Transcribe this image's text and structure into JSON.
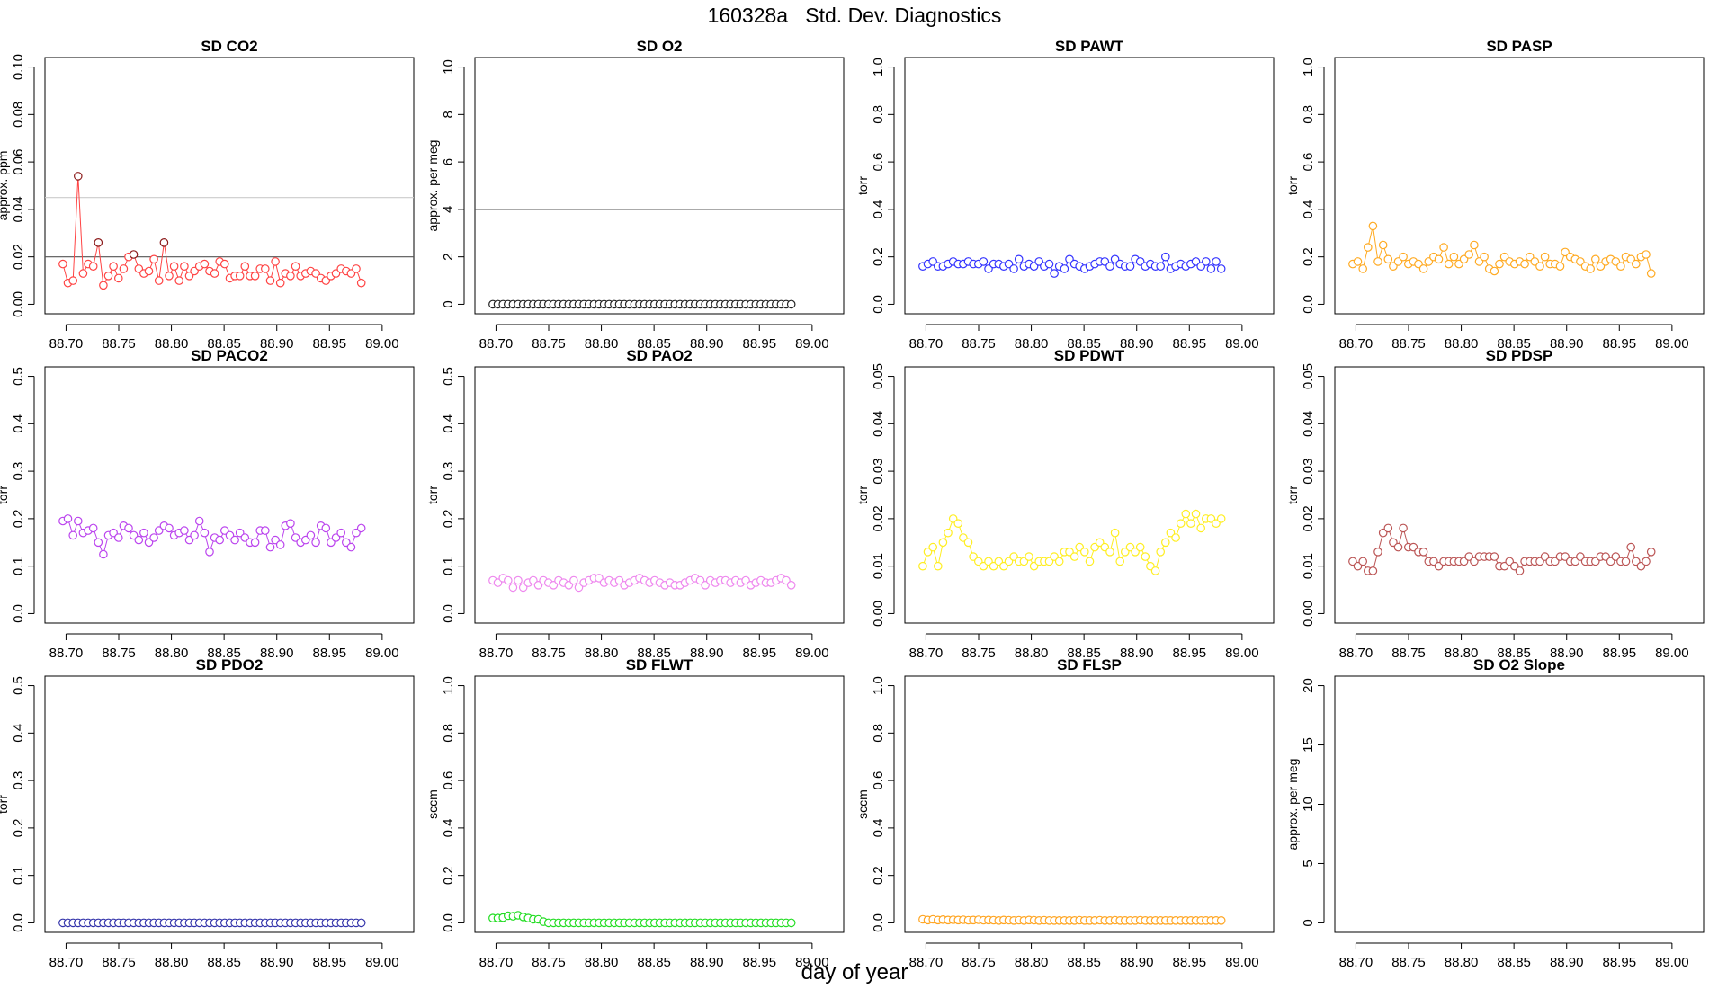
{
  "page_title": "160328a   Std. Dev. Diagnostics",
  "x_axis_label": "day of year",
  "chart_data": [
    {
      "type": "scatter",
      "title": "SD CO2",
      "ylabel": "approx. ppm",
      "xlim": [
        88.68,
        89.03
      ],
      "ylim": [
        0,
        0.1
      ],
      "yticks": [
        0,
        0.02,
        0.04,
        0.06,
        0.08,
        0.1
      ],
      "yticklabels": [
        "0.00",
        "0.02",
        "0.04",
        "0.06",
        "0.08",
        "0.10"
      ],
      "xticks": [
        88.7,
        88.75,
        88.8,
        88.85,
        88.9,
        88.95,
        89.0
      ],
      "xticklabels": [
        "88.70",
        "88.75",
        "88.80",
        "88.85",
        "88.90",
        "88.95",
        "89.00"
      ],
      "color": "#ff4444",
      "hlines": [
        {
          "y": 0.02,
          "color": "#555555"
        },
        {
          "y": 0.045,
          "color": "#cccccc"
        }
      ],
      "highlight_above": 0.02,
      "highlight_color": "#8b1a1a",
      "x0": 88.697,
      "dx": 0.0048,
      "y": [
        0.017,
        0.009,
        0.01,
        0.054,
        0.013,
        0.017,
        0.016,
        0.026,
        0.008,
        0.012,
        0.016,
        0.011,
        0.015,
        0.02,
        0.021,
        0.015,
        0.013,
        0.014,
        0.019,
        0.01,
        0.026,
        0.012,
        0.016,
        0.01,
        0.016,
        0.012,
        0.014,
        0.016,
        0.017,
        0.014,
        0.013,
        0.018,
        0.017,
        0.011,
        0.012,
        0.012,
        0.016,
        0.012,
        0.012,
        0.015,
        0.015,
        0.01,
        0.018,
        0.009,
        0.013,
        0.012,
        0.016,
        0.012,
        0.013,
        0.014,
        0.013,
        0.011,
        0.01,
        0.012,
        0.013,
        0.015,
        0.014,
        0.013,
        0.015,
        0.009
      ]
    },
    {
      "type": "scatter",
      "title": "SD O2",
      "ylabel": "approx. per meg",
      "xlim": [
        88.68,
        89.03
      ],
      "ylim": [
        0,
        10
      ],
      "yticks": [
        0,
        2,
        4,
        6,
        8,
        10
      ],
      "yticklabels": [
        "0",
        "2",
        "4",
        "6",
        "8",
        "10"
      ],
      "xticks": [
        88.7,
        88.75,
        88.8,
        88.85,
        88.9,
        88.95,
        89.0
      ],
      "xticklabels": [
        "88.70",
        "88.75",
        "88.80",
        "88.85",
        "88.90",
        "88.95",
        "89.00"
      ],
      "color": "#222222",
      "hlines": [
        {
          "y": 4,
          "color": "#555555"
        }
      ],
      "x0": 88.697,
      "dx": 0.0048,
      "y": [
        0,
        0,
        0,
        0,
        0,
        0,
        0,
        0,
        0,
        0,
        0,
        0,
        0,
        0,
        0,
        0,
        0,
        0,
        0,
        0,
        0,
        0,
        0,
        0,
        0,
        0,
        0,
        0,
        0,
        0,
        0,
        0,
        0,
        0,
        0,
        0,
        0,
        0,
        0,
        0,
        0,
        0,
        0,
        0,
        0,
        0,
        0,
        0,
        0,
        0,
        0,
        0,
        0,
        0,
        0,
        0,
        0,
        0,
        0,
        0
      ]
    },
    {
      "type": "scatter",
      "title": "SD PAWT",
      "ylabel": "torr",
      "xlim": [
        88.68,
        89.03
      ],
      "ylim": [
        0,
        1
      ],
      "yticks": [
        0,
        0.2,
        0.4,
        0.6,
        0.8,
        1
      ],
      "yticklabels": [
        "0.0",
        "0.2",
        "0.4",
        "0.6",
        "0.8",
        "1.0"
      ],
      "xticks": [
        88.7,
        88.75,
        88.8,
        88.85,
        88.9,
        88.95,
        89.0
      ],
      "xticklabels": [
        "88.70",
        "88.75",
        "88.80",
        "88.85",
        "88.90",
        "88.95",
        "89.00"
      ],
      "color": "#3333ff",
      "hlines": [],
      "x0": 88.697,
      "dx": 0.0048,
      "y": [
        0.16,
        0.17,
        0.18,
        0.16,
        0.16,
        0.17,
        0.18,
        0.17,
        0.17,
        0.18,
        0.17,
        0.17,
        0.18,
        0.15,
        0.17,
        0.17,
        0.16,
        0.17,
        0.15,
        0.19,
        0.16,
        0.17,
        0.16,
        0.18,
        0.16,
        0.17,
        0.13,
        0.16,
        0.15,
        0.19,
        0.17,
        0.16,
        0.15,
        0.16,
        0.17,
        0.18,
        0.18,
        0.16,
        0.19,
        0.17,
        0.16,
        0.16,
        0.19,
        0.18,
        0.16,
        0.17,
        0.16,
        0.16,
        0.2,
        0.15,
        0.16,
        0.17,
        0.16,
        0.17,
        0.18,
        0.16,
        0.18,
        0.15,
        0.18,
        0.15
      ]
    },
    {
      "type": "scatter",
      "title": "SD PASP",
      "ylabel": "torr",
      "xlim": [
        88.68,
        89.03
      ],
      "ylim": [
        0,
        1
      ],
      "yticks": [
        0,
        0.2,
        0.4,
        0.6,
        0.8,
        1
      ],
      "yticklabels": [
        "0.0",
        "0.2",
        "0.4",
        "0.6",
        "0.8",
        "1.0"
      ],
      "xticks": [
        88.7,
        88.75,
        88.8,
        88.85,
        88.9,
        88.95,
        89.0
      ],
      "xticklabels": [
        "88.70",
        "88.75",
        "88.80",
        "88.85",
        "88.90",
        "88.95",
        "89.00"
      ],
      "color": "#ffaa22",
      "hlines": [],
      "x0": 88.697,
      "dx": 0.0048,
      "y": [
        0.17,
        0.18,
        0.15,
        0.24,
        0.33,
        0.18,
        0.25,
        0.19,
        0.16,
        0.18,
        0.2,
        0.17,
        0.18,
        0.17,
        0.15,
        0.18,
        0.2,
        0.19,
        0.24,
        0.17,
        0.2,
        0.17,
        0.19,
        0.21,
        0.25,
        0.18,
        0.2,
        0.15,
        0.14,
        0.17,
        0.2,
        0.18,
        0.17,
        0.18,
        0.17,
        0.2,
        0.18,
        0.16,
        0.2,
        0.17,
        0.17,
        0.16,
        0.22,
        0.2,
        0.19,
        0.18,
        0.16,
        0.15,
        0.19,
        0.16,
        0.18,
        0.19,
        0.18,
        0.16,
        0.2,
        0.19,
        0.17,
        0.2,
        0.21,
        0.13
      ]
    },
    {
      "type": "scatter",
      "title": "SD PACO2",
      "ylabel": "torr",
      "xlim": [
        88.68,
        89.03
      ],
      "ylim": [
        0,
        0.5
      ],
      "yticks": [
        0,
        0.1,
        0.2,
        0.3,
        0.4,
        0.5
      ],
      "yticklabels": [
        "0.0",
        "0.1",
        "0.2",
        "0.3",
        "0.4",
        "0.5"
      ],
      "xticks": [
        88.7,
        88.75,
        88.8,
        88.85,
        88.9,
        88.95,
        89.0
      ],
      "xticklabels": [
        "88.70",
        "88.75",
        "88.80",
        "88.85",
        "88.90",
        "88.95",
        "89.00"
      ],
      "color": "#bb44ee",
      "hlines": [],
      "x0": 88.697,
      "dx": 0.0048,
      "y": [
        0.195,
        0.2,
        0.165,
        0.195,
        0.17,
        0.175,
        0.18,
        0.15,
        0.125,
        0.165,
        0.17,
        0.16,
        0.185,
        0.18,
        0.165,
        0.155,
        0.17,
        0.15,
        0.16,
        0.175,
        0.185,
        0.18,
        0.165,
        0.17,
        0.175,
        0.155,
        0.165,
        0.195,
        0.17,
        0.13,
        0.16,
        0.155,
        0.175,
        0.165,
        0.155,
        0.17,
        0.16,
        0.15,
        0.15,
        0.175,
        0.175,
        0.14,
        0.155,
        0.145,
        0.185,
        0.19,
        0.16,
        0.15,
        0.155,
        0.165,
        0.15,
        0.185,
        0.18,
        0.15,
        0.16,
        0.17,
        0.15,
        0.14,
        0.17,
        0.18
      ]
    },
    {
      "type": "scatter",
      "title": "SD PAO2",
      "ylabel": "torr",
      "xlim": [
        88.68,
        89.03
      ],
      "ylim": [
        0,
        0.5
      ],
      "yticks": [
        0,
        0.1,
        0.2,
        0.3,
        0.4,
        0.5
      ],
      "yticklabels": [
        "0.0",
        "0.1",
        "0.2",
        "0.3",
        "0.4",
        "0.5"
      ],
      "xticks": [
        88.7,
        88.75,
        88.8,
        88.85,
        88.9,
        88.95,
        89.0
      ],
      "xticklabels": [
        "88.70",
        "88.75",
        "88.80",
        "88.85",
        "88.90",
        "88.95",
        "89.00"
      ],
      "color": "#ee88ee",
      "hlines": [],
      "x0": 88.697,
      "dx": 0.0048,
      "y": [
        0.07,
        0.065,
        0.075,
        0.07,
        0.055,
        0.07,
        0.055,
        0.065,
        0.07,
        0.06,
        0.07,
        0.065,
        0.06,
        0.07,
        0.065,
        0.06,
        0.07,
        0.055,
        0.065,
        0.07,
        0.075,
        0.075,
        0.065,
        0.07,
        0.065,
        0.07,
        0.06,
        0.065,
        0.07,
        0.075,
        0.07,
        0.065,
        0.07,
        0.065,
        0.06,
        0.065,
        0.06,
        0.06,
        0.065,
        0.07,
        0.075,
        0.07,
        0.06,
        0.07,
        0.065,
        0.07,
        0.07,
        0.065,
        0.07,
        0.065,
        0.07,
        0.06,
        0.065,
        0.07,
        0.065,
        0.065,
        0.07,
        0.075,
        0.07,
        0.06
      ]
    },
    {
      "type": "scatter",
      "title": "SD PDWT",
      "ylabel": "torr",
      "xlim": [
        88.68,
        89.03
      ],
      "ylim": [
        0,
        0.05
      ],
      "yticks": [
        0,
        0.01,
        0.02,
        0.03,
        0.04,
        0.05
      ],
      "yticklabels": [
        "0.00",
        "0.01",
        "0.02",
        "0.03",
        "0.04",
        "0.05"
      ],
      "xticks": [
        88.7,
        88.75,
        88.8,
        88.85,
        88.9,
        88.95,
        89.0
      ],
      "xticklabels": [
        "88.70",
        "88.75",
        "88.80",
        "88.85",
        "88.90",
        "88.95",
        "89.00"
      ],
      "color": "#ffee22",
      "hlines": [],
      "x0": 88.697,
      "dx": 0.0048,
      "y": [
        0.01,
        0.013,
        0.014,
        0.01,
        0.015,
        0.017,
        0.02,
        0.019,
        0.016,
        0.015,
        0.012,
        0.011,
        0.01,
        0.011,
        0.01,
        0.011,
        0.01,
        0.011,
        0.012,
        0.011,
        0.011,
        0.012,
        0.01,
        0.011,
        0.011,
        0.011,
        0.012,
        0.011,
        0.013,
        0.013,
        0.012,
        0.014,
        0.013,
        0.011,
        0.014,
        0.015,
        0.014,
        0.013,
        0.017,
        0.011,
        0.013,
        0.014,
        0.013,
        0.014,
        0.012,
        0.01,
        0.009,
        0.013,
        0.015,
        0.017,
        0.016,
        0.019,
        0.021,
        0.019,
        0.021,
        0.018,
        0.02,
        0.02,
        0.019,
        0.02
      ]
    },
    {
      "type": "scatter",
      "title": "SD PDSP",
      "ylabel": "torr",
      "xlim": [
        88.68,
        89.03
      ],
      "ylim": [
        0,
        0.05
      ],
      "yticks": [
        0,
        0.01,
        0.02,
        0.03,
        0.04,
        0.05
      ],
      "yticklabels": [
        "0.00",
        "0.01",
        "0.02",
        "0.03",
        "0.04",
        "0.05"
      ],
      "xticks": [
        88.7,
        88.75,
        88.8,
        88.85,
        88.9,
        88.95,
        89.0
      ],
      "xticklabels": [
        "88.70",
        "88.75",
        "88.80",
        "88.85",
        "88.90",
        "88.95",
        "89.00"
      ],
      "color": "#bb5555",
      "hlines": [],
      "x0": 88.697,
      "dx": 0.0048,
      "y": [
        0.011,
        0.01,
        0.011,
        0.009,
        0.009,
        0.013,
        0.017,
        0.018,
        0.015,
        0.014,
        0.018,
        0.014,
        0.014,
        0.013,
        0.013,
        0.011,
        0.011,
        0.01,
        0.011,
        0.011,
        0.011,
        0.011,
        0.011,
        0.012,
        0.011,
        0.012,
        0.012,
        0.012,
        0.012,
        0.01,
        0.01,
        0.011,
        0.01,
        0.009,
        0.011,
        0.011,
        0.011,
        0.011,
        0.012,
        0.011,
        0.011,
        0.012,
        0.012,
        0.011,
        0.011,
        0.012,
        0.011,
        0.011,
        0.011,
        0.012,
        0.012,
        0.011,
        0.012,
        0.011,
        0.011,
        0.014,
        0.011,
        0.01,
        0.011,
        0.013
      ]
    },
    {
      "type": "scatter",
      "title": "SD PDO2",
      "ylabel": "torr",
      "xlim": [
        88.68,
        89.03
      ],
      "ylim": [
        0,
        0.5
      ],
      "yticks": [
        0,
        0.1,
        0.2,
        0.3,
        0.4,
        0.5
      ],
      "yticklabels": [
        "0.0",
        "0.1",
        "0.2",
        "0.3",
        "0.4",
        "0.5"
      ],
      "xticks": [
        88.7,
        88.75,
        88.8,
        88.85,
        88.9,
        88.95,
        89.0
      ],
      "xticklabels": [
        "88.70",
        "88.75",
        "88.80",
        "88.85",
        "88.90",
        "88.95",
        "89.00"
      ],
      "color": "#3333aa",
      "hlines": [],
      "x0": 88.697,
      "dx": 0.0048,
      "y": [
        0,
        0,
        0,
        0,
        0,
        0,
        0,
        0,
        0,
        0,
        0,
        0,
        0,
        0,
        0,
        0,
        0,
        0,
        0,
        0,
        0,
        0,
        0,
        0,
        0,
        0,
        0,
        0,
        0,
        0,
        0,
        0,
        0,
        0,
        0,
        0,
        0,
        0,
        0,
        0,
        0,
        0,
        0,
        0,
        0,
        0,
        0,
        0,
        0,
        0,
        0,
        0,
        0,
        0,
        0,
        0,
        0,
        0,
        0,
        0
      ]
    },
    {
      "type": "scatter",
      "title": "SD FLWT",
      "ylabel": "sccm",
      "xlim": [
        88.68,
        89.03
      ],
      "ylim": [
        0,
        1
      ],
      "yticks": [
        0,
        0.2,
        0.4,
        0.6,
        0.8,
        1
      ],
      "yticklabels": [
        "0.0",
        "0.2",
        "0.4",
        "0.6",
        "0.8",
        "1.0"
      ],
      "xticks": [
        88.7,
        88.75,
        88.8,
        88.85,
        88.9,
        88.95,
        89.0
      ],
      "xticklabels": [
        "88.70",
        "88.75",
        "88.80",
        "88.85",
        "88.90",
        "88.95",
        "89.00"
      ],
      "color": "#22dd22",
      "hlines": [],
      "x0": 88.697,
      "dx": 0.0048,
      "y": [
        0.02,
        0.02,
        0.022,
        0.03,
        0.028,
        0.032,
        0.025,
        0.02,
        0.015,
        0.015,
        0.005,
        0,
        0,
        0,
        0,
        0,
        0,
        0,
        0,
        0,
        0,
        0,
        0,
        0,
        0,
        0,
        0,
        0,
        0,
        0,
        0,
        0,
        0,
        0,
        0,
        0,
        0,
        0,
        0,
        0,
        0,
        0,
        0,
        0,
        0,
        0,
        0,
        0,
        0,
        0,
        0,
        0,
        0,
        0,
        0,
        0,
        0,
        0,
        0,
        0
      ]
    },
    {
      "type": "scatter",
      "title": "SD FLSP",
      "ylabel": "sccm",
      "xlim": [
        88.68,
        89.03
      ],
      "ylim": [
        0,
        1
      ],
      "yticks": [
        0,
        0.2,
        0.4,
        0.6,
        0.8,
        1
      ],
      "yticklabels": [
        "0.0",
        "0.2",
        "0.4",
        "0.6",
        "0.8",
        "1.0"
      ],
      "xticks": [
        88.7,
        88.75,
        88.8,
        88.85,
        88.9,
        88.95,
        89.0
      ],
      "xticklabels": [
        "88.70",
        "88.75",
        "88.80",
        "88.85",
        "88.90",
        "88.95",
        "89.00"
      ],
      "color": "#ffa522",
      "hlines": [],
      "x0": 88.697,
      "dx": 0.0048,
      "y": [
        0.015,
        0.012,
        0.015,
        0.012,
        0.014,
        0.012,
        0.013,
        0.012,
        0.013,
        0.011,
        0.012,
        0.013,
        0.011,
        0.012,
        0.011,
        0.01,
        0.012,
        0.011,
        0.01,
        0.011,
        0.01,
        0.012,
        0.011,
        0.01,
        0.011,
        0.01,
        0.01,
        0.01,
        0.01,
        0.01,
        0.01,
        0.011,
        0.01,
        0.01,
        0.01,
        0.011,
        0.01,
        0.01,
        0.011,
        0.01,
        0.01,
        0.01,
        0.01,
        0.011,
        0.01,
        0.01,
        0.01,
        0.01,
        0.01,
        0.01,
        0.01,
        0.01,
        0.01,
        0.01,
        0.01,
        0.01,
        0.01,
        0.01,
        0.01,
        0.01
      ]
    },
    {
      "type": "scatter",
      "title": "SD O2 Slope",
      "ylabel": "approx. per meg",
      "xlim": [
        88.68,
        89.03
      ],
      "ylim": [
        0,
        20
      ],
      "yticks": [
        0,
        5,
        10,
        15,
        20
      ],
      "yticklabels": [
        "0",
        "5",
        "10",
        "15",
        "20"
      ],
      "xticks": [
        88.7,
        88.75,
        88.8,
        88.85,
        88.9,
        88.95,
        89.0
      ],
      "xticklabels": [
        "88.70",
        "88.75",
        "88.80",
        "88.85",
        "88.90",
        "88.95",
        "89.00"
      ],
      "color": "#000000",
      "hlines": [],
      "x0": 88.697,
      "dx": 0.0048,
      "y": []
    }
  ]
}
